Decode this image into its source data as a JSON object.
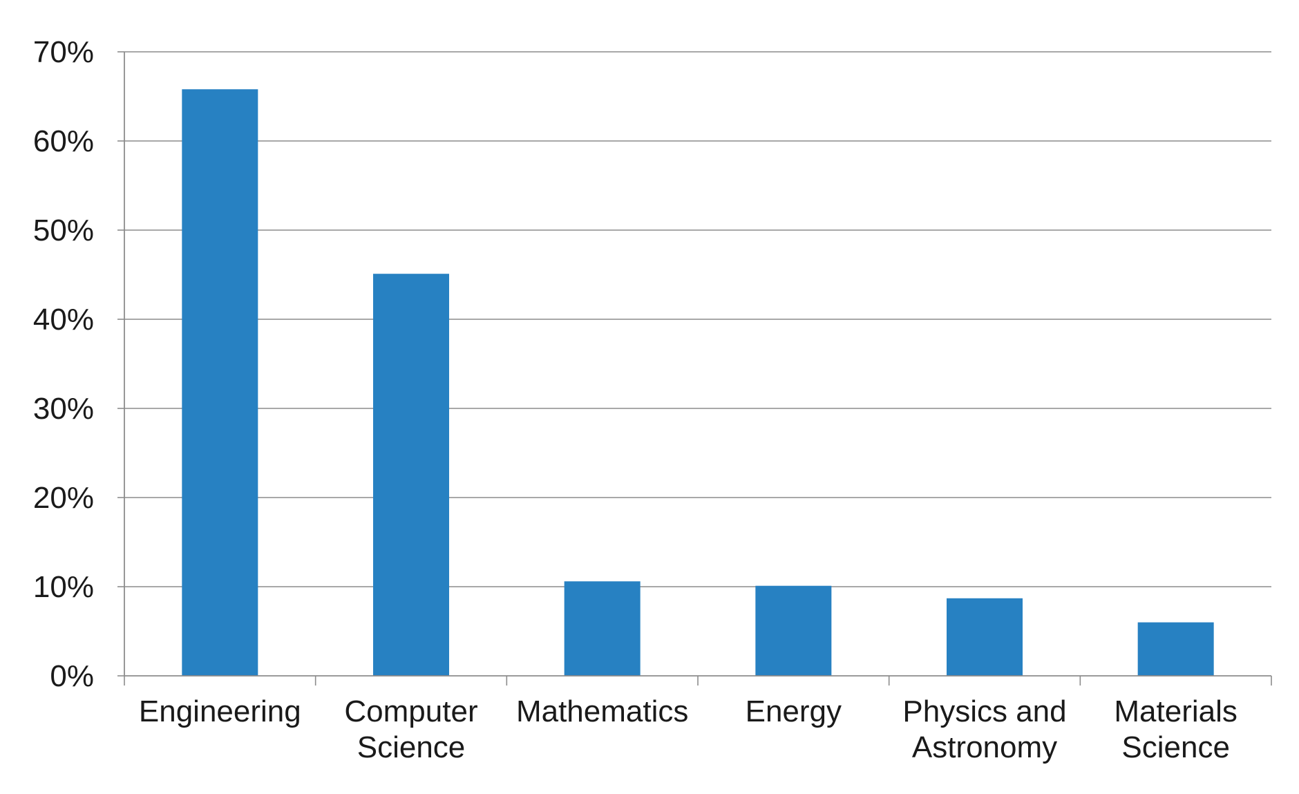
{
  "chart_data": {
    "type": "bar",
    "title": "",
    "xlabel": "",
    "ylabel": "",
    "categories": [
      [
        "Engineering"
      ],
      [
        "Computer",
        "Science"
      ],
      [
        "Mathematics"
      ],
      [
        "Energy"
      ],
      [
        "Physics and",
        "Astronomy"
      ],
      [
        "Materials",
        "Science"
      ]
    ],
    "values": [
      65.8,
      45.1,
      10.6,
      10.1,
      8.7,
      6.0
    ],
    "ylim": [
      0,
      70
    ],
    "yticks": [
      0,
      10,
      20,
      30,
      40,
      50,
      60,
      70
    ],
    "ytick_labels": [
      "0%",
      "10%",
      "20%",
      "30%",
      "40%",
      "50%",
      "60%",
      "70%"
    ],
    "grid": true,
    "legend": "none",
    "bar_color": "#2781c2"
  }
}
